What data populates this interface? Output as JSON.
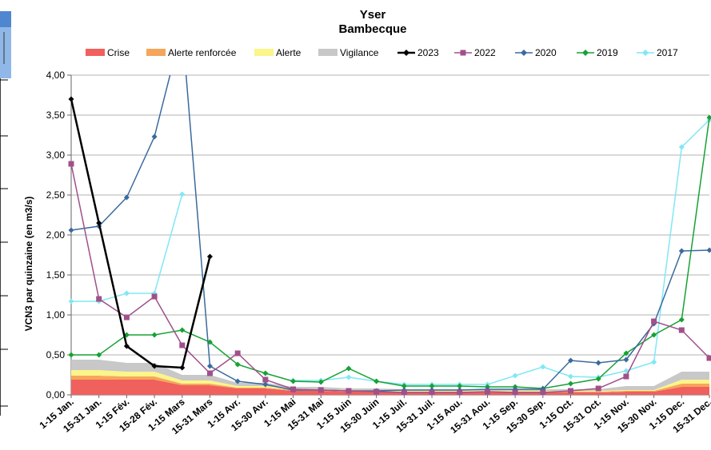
{
  "chart_data": {
    "type": "line",
    "title": "Yser",
    "subtitle": "Bambecque",
    "ylabel": "VCN3 par quinzaine (en m3/s)",
    "xlabel": "",
    "ylim": [
      0,
      4
    ],
    "yticks": [
      "0,00",
      "0,50",
      "1,00",
      "1,50",
      "2,00",
      "2,50",
      "3,00",
      "3,50",
      "4,00"
    ],
    "grid": true,
    "legend_position": "top",
    "categories": [
      "1-15 Jan.",
      "15-31 Jan.",
      "1-15 Fév.",
      "15-28 Fév.",
      "1-15 Mars",
      "15-31 Mars",
      "1-15 Avr.",
      "15-30 Avr.",
      "1-15 Mai",
      "15-31 Mai",
      "1-15 Juin",
      "15-30 Juin",
      "1-15 Juil.",
      "15-31 Juil.",
      "1-15 Aou.",
      "15-31 Aou.",
      "1-15 Sep.",
      "15-30 Sep.",
      "1-15 Oct.",
      "15-31 Oct.",
      "1-15 Nov.",
      "15-30 Nov.",
      "1-15 Dec.",
      "15-31 Dec."
    ],
    "thresholds": [
      {
        "name": "Crise",
        "color": "#f0605d",
        "values": [
          0.19,
          0.19,
          0.19,
          0.19,
          0.12,
          0.12,
          0.08,
          0.08,
          0.05,
          0.05,
          0.04,
          0.04,
          0.03,
          0.03,
          0.03,
          0.03,
          0.03,
          0.03,
          0.03,
          0.03,
          0.04,
          0.04,
          0.1,
          0.1
        ]
      },
      {
        "name": "Alerte renforcée",
        "color": "#f5a65b",
        "values": [
          0.05,
          0.05,
          0.04,
          0.04,
          0.02,
          0.02,
          0.01,
          0.01,
          0.01,
          0.01,
          0.01,
          0.01,
          0.01,
          0.01,
          0.01,
          0.01,
          0.01,
          0.01,
          0.01,
          0.01,
          0.01,
          0.01,
          0.04,
          0.04
        ]
      },
      {
        "name": "Alerte",
        "color": "#fbf58a",
        "values": [
          0.07,
          0.07,
          0.06,
          0.06,
          0.04,
          0.04,
          0.02,
          0.02,
          0.01,
          0.01,
          0.01,
          0.01,
          0.01,
          0.01,
          0.01,
          0.01,
          0.01,
          0.01,
          0.01,
          0.01,
          0.01,
          0.01,
          0.05,
          0.05
        ]
      },
      {
        "name": "Vigilance",
        "color": "#c8c8c8",
        "values": [
          0.13,
          0.13,
          0.11,
          0.11,
          0.07,
          0.07,
          0.04,
          0.04,
          0.03,
          0.03,
          0.02,
          0.02,
          0.02,
          0.02,
          0.02,
          0.02,
          0.02,
          0.02,
          0.02,
          0.02,
          0.05,
          0.05,
          0.1,
          0.1
        ]
      }
    ],
    "series": [
      {
        "name": "2023",
        "color": "#000000",
        "marker": "diamond",
        "width": 2.5,
        "values": [
          3.7,
          2.15,
          0.61,
          0.36,
          0.34,
          1.73,
          null,
          null,
          null,
          null,
          null,
          null,
          null,
          null,
          null,
          null,
          null,
          null,
          null,
          null,
          null,
          null,
          null,
          null
        ]
      },
      {
        "name": "2022",
        "color": "#a0508a",
        "marker": "square",
        "width": 1.5,
        "values": [
          2.89,
          1.2,
          0.97,
          1.23,
          0.62,
          0.27,
          0.52,
          0.19,
          0.07,
          0.06,
          0.05,
          0.04,
          0.03,
          0.03,
          0.03,
          0.04,
          0.03,
          0.03,
          0.05,
          0.08,
          0.23,
          0.92,
          0.81,
          0.46
        ]
      },
      {
        "name": "2020",
        "color": "#3a6a9e",
        "marker": "diamond",
        "width": 1.5,
        "values": [
          2.06,
          2.11,
          2.47,
          3.23,
          4.6,
          0.36,
          0.17,
          0.13,
          0.06,
          0.06,
          0.05,
          0.05,
          0.06,
          0.06,
          0.06,
          0.07,
          0.07,
          0.07,
          0.43,
          0.4,
          0.44,
          0.89,
          1.8,
          1.81
        ]
      },
      {
        "name": "2019",
        "color": "#16a234",
        "marker": "diamond",
        "width": 1.5,
        "values": [
          0.5,
          0.5,
          0.75,
          0.75,
          0.81,
          0.66,
          0.38,
          0.27,
          0.17,
          0.16,
          0.33,
          0.17,
          0.11,
          0.11,
          0.11,
          0.1,
          0.1,
          0.08,
          0.14,
          0.2,
          0.52,
          0.75,
          0.94,
          3.47
        ]
      },
      {
        "name": "2017",
        "color": "#7fe8f4",
        "marker": "diamond",
        "width": 1.5,
        "values": [
          1.17,
          1.17,
          1.27,
          1.27,
          2.51,
          null,
          null,
          null,
          0.18,
          0.18,
          0.22,
          0.17,
          0.13,
          0.13,
          0.13,
          0.13,
          0.24,
          0.35,
          0.23,
          0.22,
          0.3,
          0.41,
          3.1,
          3.44
        ]
      }
    ]
  }
}
